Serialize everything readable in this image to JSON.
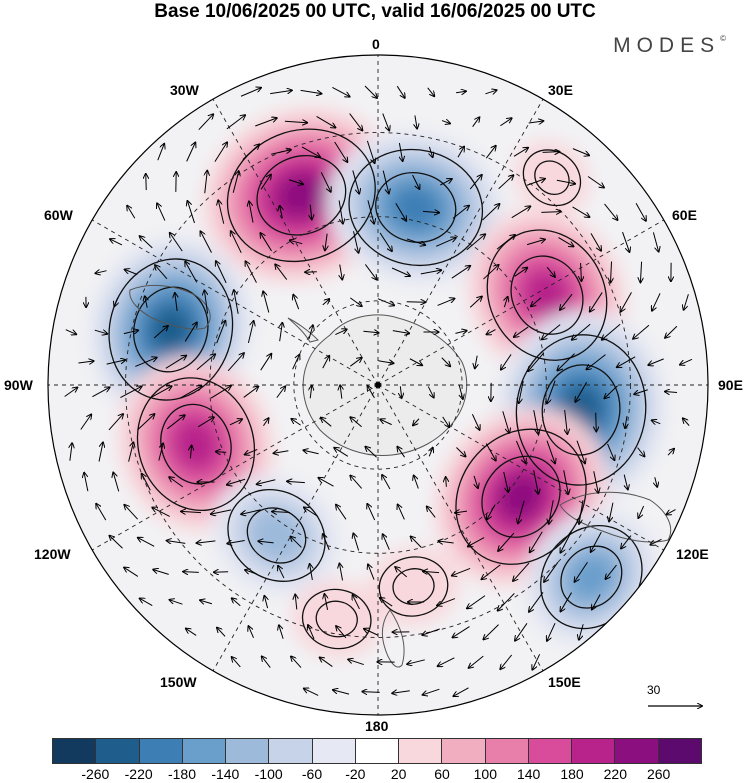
{
  "title": "Base 10/06/2025 00 UTC, valid 16/06/2025 00 UTC",
  "brand": "MODES",
  "brand_mark": "©",
  "longitude_labels": {
    "top": "0",
    "top_right": "30E",
    "right_upper": "60E",
    "right": "90E",
    "right_lower": "120E",
    "bottom_right": "150E",
    "bottom": "180",
    "bottom_left": "150W",
    "left_lower": "120W",
    "left": "90W",
    "left_upper": "60W",
    "top_left": "30W"
  },
  "reference_vector": "30",
  "colorbar": {
    "colors": [
      "#123a5e",
      "#1f5d8c",
      "#3d7fb5",
      "#6a9fcc",
      "#9dbadb",
      "#c7d3e8",
      "#e6e8f3",
      "#ffffff",
      "#f8d8dd",
      "#f2aec1",
      "#e87fab",
      "#d84c9b",
      "#b7228b",
      "#8c0f7f",
      "#5c0a6e"
    ],
    "ticks": [
      "-260",
      "-220",
      "-180",
      "-140",
      "-100",
      "-60",
      "-20",
      "20",
      "60",
      "100",
      "140",
      "180",
      "220",
      "260"
    ]
  },
  "anomaly_centers": [
    {
      "lon": 338,
      "dist": 0.62,
      "value": 260,
      "sign": "positive"
    },
    {
      "lon": 12,
      "dist": 0.55,
      "value": -220,
      "sign": "negative"
    },
    {
      "lon": 62,
      "dist": 0.58,
      "value": 220,
      "sign": "positive"
    },
    {
      "lon": 97,
      "dist": 0.62,
      "value": -260,
      "sign": "negative"
    },
    {
      "lon": 128,
      "dist": 0.55,
      "value": 240,
      "sign": "positive"
    },
    {
      "lon": 132,
      "dist": 0.87,
      "value": -160,
      "sign": "negative"
    },
    {
      "lon": 285,
      "dist": 0.65,
      "value": -240,
      "sign": "negative"
    },
    {
      "lon": 252,
      "dist": 0.58,
      "value": 220,
      "sign": "positive"
    },
    {
      "lon": 214,
      "dist": 0.55,
      "value": -140,
      "sign": "negative"
    },
    {
      "lon": 190,
      "dist": 0.72,
      "value": 60,
      "sign": "positive"
    },
    {
      "lon": 170,
      "dist": 0.62,
      "value": 60,
      "sign": "positive"
    },
    {
      "lon": 40,
      "dist": 0.82,
      "value": 40,
      "sign": "positive"
    }
  ]
}
